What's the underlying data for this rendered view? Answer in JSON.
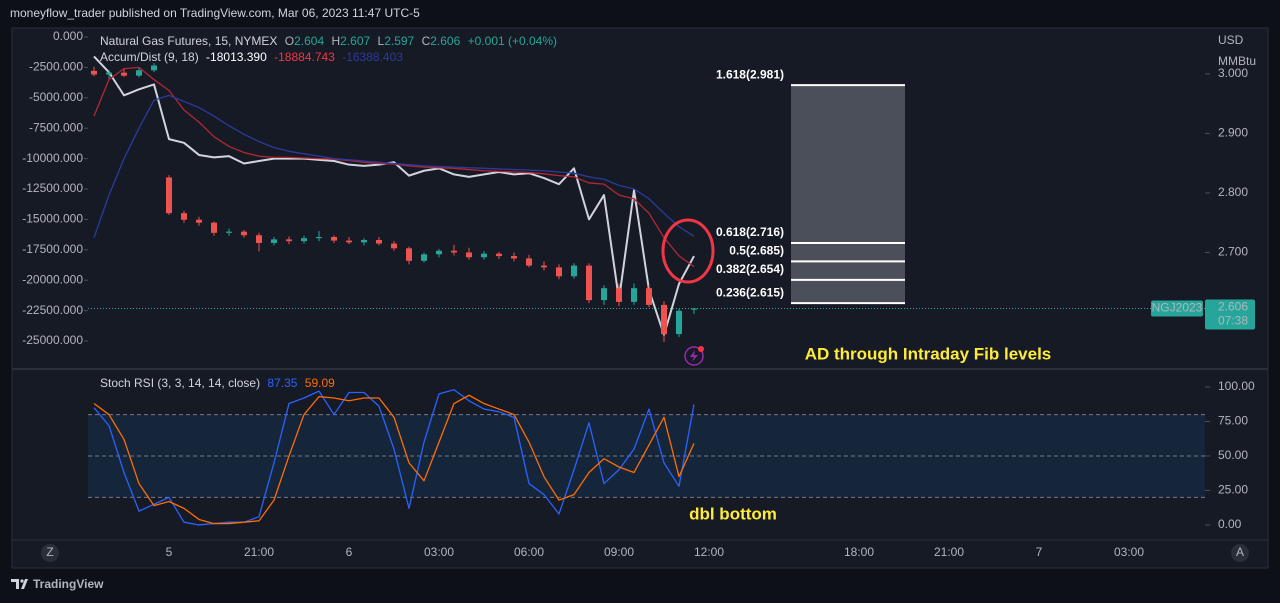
{
  "header": {
    "title": "moneyflow_trader published on TradingView.com, Mar 06, 2023 11:47 UTC-5"
  },
  "footer": {
    "brand": "TradingView"
  },
  "ui": {
    "z_button": "Z",
    "a_button": "A"
  },
  "chart_data": [
    {
      "type": "candlestick",
      "title": "Natural Gas Futures, 15, NYMEX",
      "ohlc_legend": [
        {
          "label": "O",
          "value": 2.604
        },
        {
          "label": "H",
          "value": 2.607
        },
        {
          "label": "L",
          "value": 2.597
        },
        {
          "label": "C",
          "value": 2.606
        }
      ],
      "change": "+0.001 (+0.04%)",
      "indicator_title": "Accum/Dist (9, 18)",
      "units": [
        "USD",
        "MMBtu"
      ],
      "annotation": "AD through Intraday Fib levels",
      "up_color": "#26a69a",
      "down_color": "#ef5350",
      "ohlc": {
        "open": [
          null,
          3.005,
          2.999,
          3.002,
          2.997,
          3.006,
          2.826,
          2.766,
          2.755,
          2.75,
          2.733,
          2.735,
          2.729,
          2.716,
          2.722,
          2.719,
          2.724,
          2.726,
          2.72,
          2.717,
          2.721,
          2.715,
          2.707,
          2.686,
          2.697,
          2.703,
          2.7,
          2.692,
          2.698,
          2.694,
          2.69,
          2.678,
          2.675,
          2.66,
          2.678,
          2.62,
          2.64,
          2.617,
          2.64,
          2.612,
          2.563,
          2.604,
          null,
          null,
          null,
          null,
          null,
          null,
          null,
          null,
          null,
          null,
          null,
          null,
          null,
          null,
          null,
          null,
          null,
          null,
          null,
          null,
          null,
          null,
          null,
          null,
          null,
          null,
          null,
          null,
          null,
          null,
          null,
          null,
          null
        ],
        "high": [
          null,
          3.012,
          3.006,
          3.008,
          3.01,
          3.018,
          2.83,
          2.77,
          2.76,
          2.752,
          2.74,
          2.738,
          2.733,
          2.726,
          2.727,
          2.728,
          2.736,
          2.729,
          2.726,
          2.724,
          2.726,
          2.719,
          2.71,
          2.7,
          2.706,
          2.713,
          2.708,
          2.702,
          2.701,
          2.7,
          2.696,
          2.685,
          2.68,
          2.682,
          2.682,
          2.645,
          2.648,
          2.648,
          2.645,
          2.618,
          2.605,
          2.607,
          null,
          null,
          null,
          null,
          null,
          null,
          null,
          null,
          null,
          null,
          null,
          null,
          null,
          null,
          null,
          null,
          null,
          null,
          null,
          null,
          null,
          null,
          null,
          null,
          null,
          null,
          null,
          null,
          null,
          null,
          null,
          null,
          null
        ],
        "low": [
          null,
          2.996,
          2.992,
          2.995,
          2.994,
          3.003,
          2.763,
          2.75,
          2.745,
          2.728,
          2.728,
          2.725,
          2.702,
          2.712,
          2.714,
          2.715,
          2.719,
          2.716,
          2.714,
          2.712,
          2.712,
          2.703,
          2.68,
          2.683,
          2.692,
          2.695,
          2.688,
          2.688,
          2.689,
          2.685,
          2.675,
          2.67,
          2.655,
          2.656,
          2.615,
          2.612,
          2.61,
          2.612,
          2.608,
          2.55,
          2.558,
          2.597,
          null,
          null,
          null,
          null,
          null,
          null,
          null,
          null,
          null,
          null,
          null,
          null,
          null,
          null,
          null,
          null,
          null,
          null,
          null,
          null,
          null,
          null,
          null,
          null,
          null,
          null,
          null,
          null,
          null,
          null,
          null,
          null,
          null
        ],
        "close": [
          null,
          2.999,
          3.002,
          2.997,
          3.006,
          3.014,
          2.766,
          2.755,
          2.75,
          2.733,
          2.735,
          2.729,
          2.716,
          2.722,
          2.719,
          2.724,
          2.726,
          2.72,
          2.717,
          2.721,
          2.715,
          2.707,
          2.686,
          2.697,
          2.703,
          2.7,
          2.692,
          2.698,
          2.694,
          2.69,
          2.678,
          2.675,
          2.66,
          2.678,
          2.62,
          2.64,
          2.617,
          2.64,
          2.612,
          2.563,
          2.602,
          2.606,
          null,
          null,
          null,
          null,
          null,
          null,
          null,
          null,
          null,
          null,
          null,
          null,
          null,
          null,
          null,
          null,
          null,
          null,
          null,
          null,
          null,
          null,
          null,
          null,
          null,
          null,
          null,
          null,
          null,
          null,
          null,
          null,
          null
        ]
      },
      "series": [
        {
          "color": "#d1d4dc",
          "axis": "y2",
          "last_value_label": "-18013.390",
          "values": [
            null,
            -1600,
            -2900,
            -4800,
            -4300,
            -3900,
            -8400,
            -8700,
            -9700,
            -9900,
            -9800,
            -10400,
            -10200,
            -10000,
            -10000,
            -10000,
            -10100,
            -10200,
            -10500,
            -10600,
            -10500,
            -10300,
            -11400,
            -11000,
            -10800,
            -11300,
            -11500,
            -11300,
            -11100,
            -11300,
            -11200,
            -11600,
            -12100,
            -10800,
            -15000,
            -13000,
            -21600,
            -12600,
            -20800,
            -24500,
            -20300,
            -18013.39,
            null,
            null,
            null,
            null,
            null,
            null,
            null,
            null,
            null,
            null,
            null,
            null,
            null,
            null,
            null,
            null,
            null,
            null,
            null,
            null,
            null,
            null,
            null,
            null,
            null,
            null,
            null,
            null,
            null,
            null,
            null,
            null,
            null
          ]
        },
        {
          "color": "#b22833",
          "axis": "y2",
          "last_value_label": "-18884.743",
          "values": [
            null,
            -6500,
            -3500,
            -2600,
            -2500,
            -3500,
            -4400,
            -6000,
            -7000,
            -8200,
            -9000,
            -9500,
            -9800,
            -9900,
            -9900,
            -9950,
            -10000,
            -10050,
            -10150,
            -10300,
            -10400,
            -10450,
            -10600,
            -10700,
            -10750,
            -10800,
            -10900,
            -11000,
            -11050,
            -11100,
            -11150,
            -11250,
            -11400,
            -11500,
            -12000,
            -12100,
            -13000,
            -13300,
            -14500,
            -16500,
            -18000,
            -18884.743,
            null,
            null,
            null,
            null,
            null,
            null,
            null,
            null,
            null,
            null,
            null,
            null,
            null,
            null,
            null,
            null,
            null,
            null,
            null,
            null,
            null,
            null,
            null,
            null,
            null,
            null,
            null,
            null,
            null,
            null,
            null,
            null,
            null
          ]
        },
        {
          "color": "#2c3a9e",
          "axis": "y2",
          "last_value_label": "-16388.403",
          "values": [
            null,
            -16500,
            -13000,
            -10000,
            -7500,
            -5200,
            -4800,
            -5300,
            -5800,
            -6500,
            -7300,
            -8000,
            -8600,
            -9100,
            -9400,
            -9600,
            -9800,
            -10000,
            -10100,
            -10200,
            -10300,
            -10400,
            -10500,
            -10600,
            -10650,
            -10700,
            -10750,
            -10800,
            -10850,
            -10900,
            -10950,
            -11000,
            -11100,
            -11200,
            -11500,
            -11700,
            -12200,
            -12500,
            -13300,
            -14500,
            -15600,
            -16388.403,
            null,
            null,
            null,
            null,
            null,
            null,
            null,
            null,
            null,
            null,
            null,
            null,
            null,
            null,
            null,
            null,
            null,
            null,
            null,
            null,
            null,
            null,
            null,
            null,
            null,
            null,
            null,
            null,
            null,
            null,
            null,
            null,
            null
          ]
        }
      ],
      "ylim": [
        2.506,
        3.077
      ],
      "yticks": [
        {
          "value": 3,
          "label": "3.000"
        },
        {
          "value": 2.9,
          "label": "2.900"
        },
        {
          "value": 2.8,
          "label": "2.800"
        },
        {
          "value": 2.7,
          "label": "2.700"
        }
      ],
      "y2lim": [
        -27220,
        740
      ],
      "y2ticks": [
        {
          "value": 0,
          "label": "0.000"
        },
        {
          "value": -2500,
          "label": "-2500.000"
        },
        {
          "value": -5000,
          "label": "-5000.000"
        },
        {
          "value": -7500,
          "label": "-7500.000"
        },
        {
          "value": -10000,
          "label": "-10000.000"
        },
        {
          "value": -12500,
          "label": "-12500.000"
        },
        {
          "value": -15000,
          "label": "-15000.000"
        },
        {
          "value": -17500,
          "label": "-17500.000"
        },
        {
          "value": -20000,
          "label": "-20000.000"
        },
        {
          "value": -22500,
          "label": "-22500.000"
        },
        {
          "value": -25000,
          "label": "-25000.000"
        }
      ],
      "fib_levels": [
        {
          "value": 2.981,
          "label": "1.618(2.981)"
        },
        {
          "value": 2.716,
          "label": "0.618(2.716)"
        },
        {
          "value": 2.685,
          "label": "0.5(2.685)"
        },
        {
          "value": 2.654,
          "label": "0.382(2.654)"
        },
        {
          "value": 2.615,
          "label": "0.236(2.615)"
        }
      ],
      "last_price": {
        "symbol": "NGJ2023",
        "value": 2.606,
        "countdown": "07:38"
      }
    },
    {
      "type": "line",
      "title": "Stoch RSI (3, 3, 14, 14, close)",
      "annotation": "dbl bottom",
      "categories": [
        null,
        null,
        null,
        null,
        null,
        null,
        "5",
        null,
        null,
        null,
        null,
        null,
        "21:00",
        null,
        null,
        null,
        null,
        null,
        "6",
        null,
        null,
        null,
        null,
        null,
        "03:00",
        null,
        null,
        null,
        null,
        null,
        "06:00",
        null,
        null,
        null,
        null,
        null,
        "09:00",
        null,
        null,
        null,
        null,
        null,
        "12:00",
        null,
        null,
        null,
        null,
        null,
        null,
        null,
        null,
        null,
        "18:00",
        null,
        null,
        null,
        null,
        null,
        "21:00",
        null,
        null,
        null,
        null,
        null,
        "7",
        null,
        null,
        null,
        null,
        null,
        "03:00",
        null,
        null,
        null,
        null
      ],
      "series": [
        {
          "color": "#2962ff",
          "values": [
            null,
            85,
            72,
            38,
            10,
            15,
            20,
            2,
            0,
            1,
            2,
            2,
            6,
            45,
            88,
            92,
            97,
            80,
            96,
            96,
            86,
            55,
            12,
            60,
            95,
            98,
            90,
            84,
            82,
            78,
            30,
            22,
            8,
            40,
            74,
            30,
            40,
            55,
            84,
            45,
            28,
            87.35,
            null,
            null,
            null,
            null,
            null,
            null,
            null,
            null,
            null,
            null,
            null,
            null,
            null,
            null,
            null,
            null,
            null,
            null,
            null,
            null,
            null,
            null,
            null,
            null,
            null,
            null,
            null,
            null,
            null,
            null,
            null,
            null,
            null
          ]
        },
        {
          "color": "#ff6d00",
          "values": [
            null,
            88,
            80,
            62,
            30,
            14,
            17,
            12,
            4,
            1,
            1,
            2,
            3,
            18,
            50,
            80,
            93,
            92,
            90,
            92,
            92,
            78,
            45,
            32,
            60,
            88,
            94,
            88,
            84,
            80,
            60,
            35,
            18,
            22,
            38,
            48,
            42,
            38,
            58,
            78,
            35,
            59.09,
            null,
            null,
            null,
            null,
            null,
            null,
            null,
            null,
            null,
            null,
            null,
            null,
            null,
            null,
            null,
            null,
            null,
            null,
            null,
            null,
            null,
            null,
            null,
            null,
            null,
            null,
            null,
            null,
            null,
            null,
            null,
            null,
            null
          ]
        }
      ],
      "ylim": [
        -10.9,
        112.3
      ],
      "yticks": [
        {
          "value": 100,
          "label": "100.00"
        },
        {
          "value": 75,
          "label": "75.00"
        },
        {
          "value": 50,
          "label": "50.00"
        },
        {
          "value": 25,
          "label": "25.00"
        },
        {
          "value": 0,
          "label": "0.00"
        }
      ],
      "hlines": [
        80,
        50,
        20
      ]
    }
  ]
}
